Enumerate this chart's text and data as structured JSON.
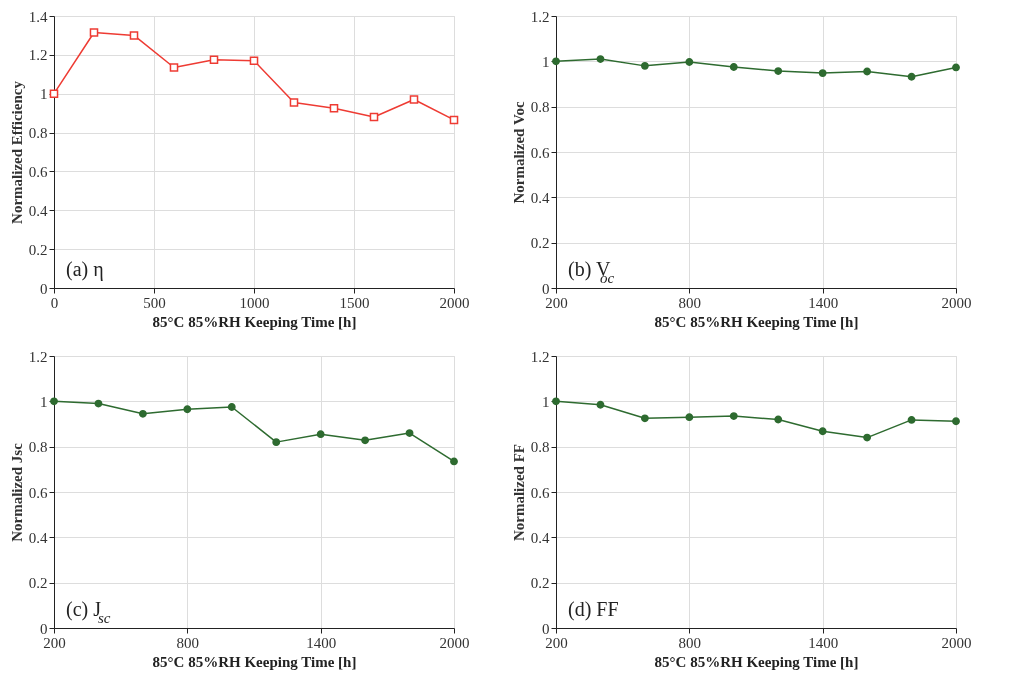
{
  "chart_data": [
    {
      "type": "line",
      "x": [
        0,
        200,
        400,
        600,
        800,
        1000,
        1200,
        1400,
        1600,
        1800,
        2000
      ],
      "xlabel": "85°C 85%RH Keeping Time [h]",
      "ylabel": "Normalized Efficiency",
      "annotations": [
        "(a) η"
      ],
      "series": [
        {
          "color": "#ee3b33",
          "values": [
            1.0,
            1.315,
            1.3,
            1.135,
            1.175,
            1.17,
            0.955,
            0.925,
            0.88,
            0.97,
            0.865
          ]
        }
      ],
      "xlim": [
        0,
        2000
      ],
      "xticks": [
        0,
        500,
        1000,
        1500,
        2000
      ],
      "ylim": [
        0,
        1.4
      ],
      "yticks": [
        0,
        0.2,
        0.4,
        0.6,
        0.8,
        1,
        1.2,
        1.4
      ],
      "grid": true,
      "marker": "square"
    },
    {
      "type": "line",
      "x": [
        200,
        400,
        600,
        800,
        1000,
        1200,
        1400,
        1600,
        1800,
        2000
      ],
      "xlabel": "85°C 85%RH Keeping Time [h]",
      "ylabel": "Normalized Voc",
      "annotations": [
        "(b) V$_{oc}$"
      ],
      "series": [
        {
          "color": "#2e6b30",
          "values": [
            1.0,
            1.01,
            0.98,
            0.997,
            0.975,
            0.957,
            0.948,
            0.955,
            0.932,
            0.973
          ]
        }
      ],
      "xlim": [
        200,
        2000
      ],
      "xticks": [
        200,
        800,
        1400,
        2000
      ],
      "ylim": [
        0,
        1.2
      ],
      "yticks": [
        0,
        0.2,
        0.4,
        0.6,
        0.8,
        1,
        1.2
      ],
      "grid": true,
      "marker": "circle"
    },
    {
      "type": "line",
      "x": [
        200,
        400,
        600,
        800,
        1000,
        1200,
        1400,
        1600,
        1800,
        2000
      ],
      "xlabel": "85°C 85%RH Keeping Time [h]",
      "ylabel": "Normalized Jsc",
      "annotations": [
        "(c) J$_{sc}$"
      ],
      "series": [
        {
          "color": "#2e6b30",
          "values": [
            1.0,
            0.99,
            0.945,
            0.965,
            0.975,
            0.82,
            0.855,
            0.828,
            0.86,
            0.735
          ]
        }
      ],
      "xlim": [
        200,
        2000
      ],
      "xticks": [
        200,
        800,
        1400,
        2000
      ],
      "ylim": [
        0,
        1.2
      ],
      "yticks": [
        0,
        0.2,
        0.4,
        0.6,
        0.8,
        1,
        1.2
      ],
      "grid": true,
      "marker": "circle"
    },
    {
      "type": "line",
      "x": [
        200,
        400,
        600,
        800,
        1000,
        1200,
        1400,
        1600,
        1800,
        2000
      ],
      "xlabel": "85°C 85%RH Keeping Time [h]",
      "ylabel": "Normalized FF",
      "annotations": [
        "(d) FF"
      ],
      "series": [
        {
          "color": "#2e6b30",
          "values": [
            1.0,
            0.985,
            0.925,
            0.93,
            0.935,
            0.92,
            0.868,
            0.84,
            0.918,
            0.912
          ]
        }
      ],
      "xlim": [
        200,
        2000
      ],
      "xticks": [
        200,
        800,
        1400,
        2000
      ],
      "ylim": [
        0,
        1.2
      ],
      "yticks": [
        0,
        0.2,
        0.4,
        0.6,
        0.8,
        1,
        1.2
      ],
      "grid": true,
      "marker": "circle"
    }
  ]
}
